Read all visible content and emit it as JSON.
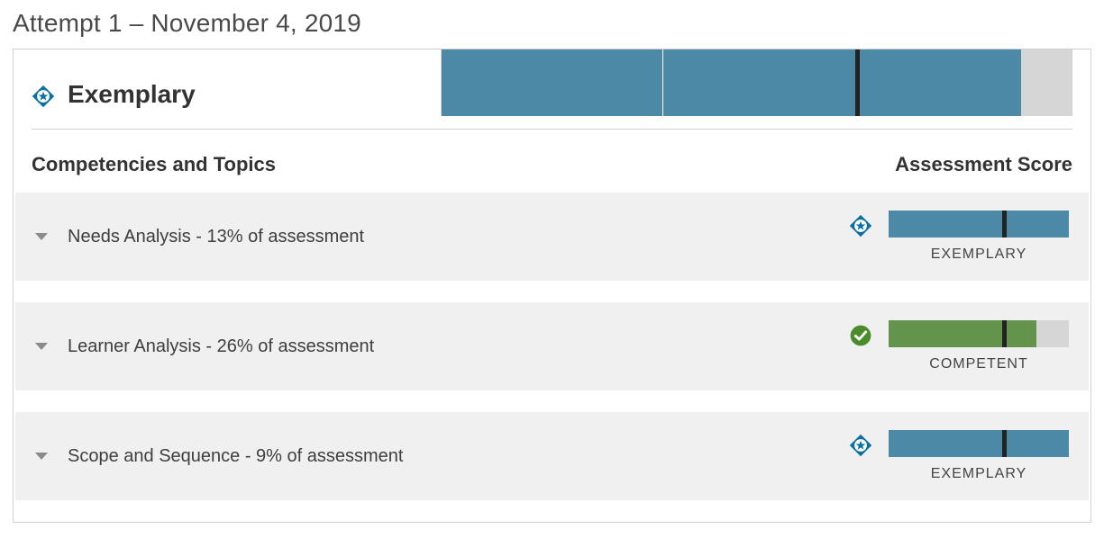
{
  "colors": {
    "blue": "#4b89a6",
    "green": "#64944b",
    "track": "#d6d6d6",
    "iconBlue": "#0b6fa4",
    "iconGreen": "#4a8b2c",
    "cut": "#222222",
    "rowBg": "#f0f0f0"
  },
  "attempt_title": "Attempt 1 – November 4, 2019",
  "overall": {
    "label": "Exemplary",
    "statusIcon": "exemplary",
    "chart": {
      "fillPct": 92,
      "cutPct": 66,
      "sepPct": 35,
      "color": "#4b89a6",
      "track": "#d6d6d6"
    }
  },
  "headers": {
    "left": "Competencies and Topics",
    "right": "Assessment Score"
  },
  "competencies": [
    {
      "title": "Needs Analysis - 13% of assessment",
      "statusIcon": "exemplary",
      "scoreLabel": "EXEMPLARY",
      "chart": {
        "fillPct": 100,
        "cutPct": 64,
        "color": "#4b89a6"
      }
    },
    {
      "title": "Learner Analysis - 26% of assessment",
      "statusIcon": "competent",
      "scoreLabel": "COMPETENT",
      "chart": {
        "fillPct": 82,
        "cutPct": 64,
        "color": "#64944b"
      }
    },
    {
      "title": "Scope and Sequence - 9% of assessment",
      "statusIcon": "exemplary",
      "scoreLabel": "EXEMPLARY",
      "chart": {
        "fillPct": 100,
        "cutPct": 64,
        "color": "#4b89a6"
      }
    }
  ]
}
